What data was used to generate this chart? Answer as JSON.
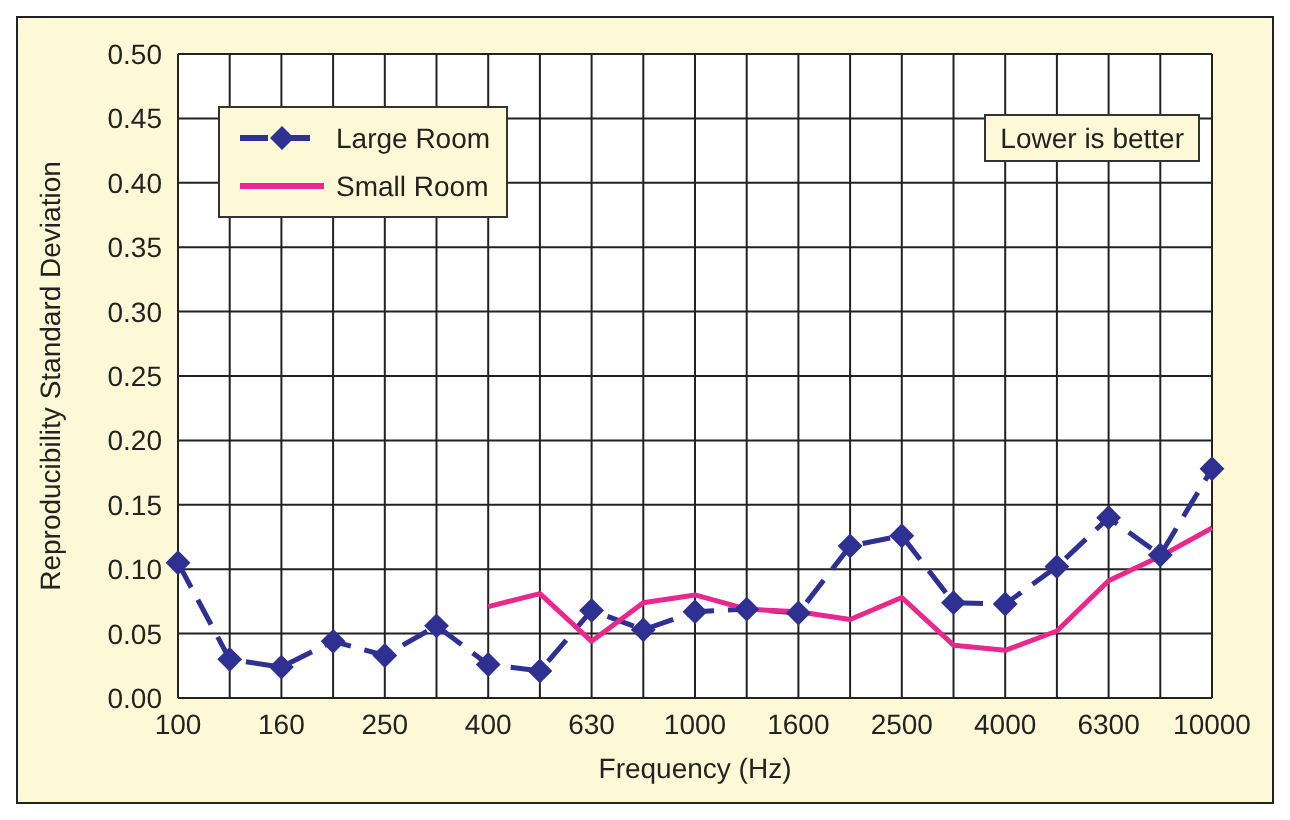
{
  "chart_data": {
    "type": "line",
    "xlabel": "Frequency (Hz)",
    "ylabel": "Reproducibility Standard Deviation",
    "annotations": [
      "Lower is better"
    ],
    "categories": [
      "100",
      null,
      "160",
      null,
      "250",
      null,
      "400",
      null,
      "630",
      null,
      "1000",
      null,
      "1600",
      null,
      "2500",
      null,
      "4000",
      null,
      "6300",
      null,
      "10000"
    ],
    "series": [
      {
        "name": "Large Room",
        "color": "#2e3192",
        "marker": "diamond",
        "line_style": "dashed",
        "values": [
          0.105,
          0.03,
          0.024,
          0.044,
          0.033,
          0.056,
          0.026,
          0.021,
          0.068,
          0.053,
          0.067,
          0.069,
          0.066,
          0.118,
          0.126,
          0.074,
          0.073,
          0.102,
          0.14,
          0.111,
          0.178
        ]
      },
      {
        "name": "Small Room",
        "color": "#e8288c",
        "marker": "none",
        "line_style": "solid",
        "values": [
          null,
          null,
          null,
          null,
          null,
          null,
          0.071,
          0.081,
          0.044,
          0.074,
          0.08,
          0.069,
          0.067,
          0.061,
          0.078,
          0.041,
          0.037,
          0.052,
          0.091,
          0.11,
          0.132
        ]
      }
    ],
    "ylim": [
      0,
      0.5
    ],
    "yticks": [
      {
        "value": 0,
        "label": "0.00"
      },
      {
        "value": 0.05,
        "label": "0.05"
      },
      {
        "value": 0.1,
        "label": "0.10"
      },
      {
        "value": 0.15,
        "label": "0.15"
      },
      {
        "value": 0.2,
        "label": "0.20"
      },
      {
        "value": 0.25,
        "label": "0.25"
      },
      {
        "value": 0.3,
        "label": "0.30"
      },
      {
        "value": 0.35,
        "label": "0.35"
      },
      {
        "value": 0.4,
        "label": "0.40"
      },
      {
        "value": 0.45,
        "label": "0.45"
      },
      {
        "value": 0.5,
        "label": "0.50"
      }
    ],
    "grid": true,
    "legend": "top left"
  }
}
